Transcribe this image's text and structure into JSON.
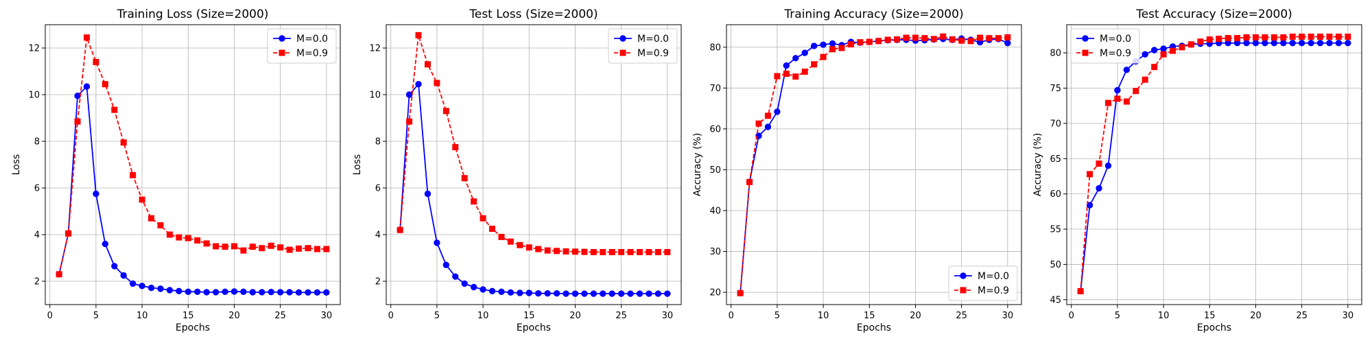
{
  "chart_data": [
    {
      "type": "line",
      "title": "Training Loss (Size=2000)",
      "xlabel": "Epochs",
      "ylabel": "Loss",
      "xlim": [
        -0.5,
        31.5
      ],
      "ylim": [
        1.0,
        13.0
      ],
      "xticks": [
        0,
        5,
        10,
        15,
        20,
        25,
        30
      ],
      "yticks": [
        2,
        4,
        6,
        8,
        10,
        12
      ],
      "grid": true,
      "legend": "top-right",
      "x": [
        1,
        2,
        3,
        4,
        5,
        6,
        7,
        8,
        9,
        10,
        11,
        12,
        13,
        14,
        15,
        16,
        17,
        18,
        19,
        20,
        21,
        22,
        23,
        24,
        25,
        26,
        27,
        28,
        29,
        30
      ],
      "series": [
        {
          "name": "M=0.0",
          "color": "#0000ff",
          "marker": "circle",
          "linestyle": "solid",
          "values": [
            2.3,
            4.05,
            9.95,
            10.35,
            5.75,
            3.6,
            2.65,
            2.25,
            1.9,
            1.8,
            1.72,
            1.68,
            1.62,
            1.58,
            1.55,
            1.55,
            1.53,
            1.53,
            1.55,
            1.56,
            1.55,
            1.53,
            1.53,
            1.54,
            1.53,
            1.53,
            1.52,
            1.52,
            1.52,
            1.52
          ]
        },
        {
          "name": "M=0.9",
          "color": "#ff0000",
          "marker": "square",
          "linestyle": "dashed",
          "values": [
            2.3,
            4.05,
            8.85,
            12.45,
            11.4,
            10.45,
            9.35,
            7.95,
            6.55,
            5.5,
            4.7,
            4.4,
            4.0,
            3.88,
            3.85,
            3.75,
            3.62,
            3.5,
            3.48,
            3.5,
            3.32,
            3.48,
            3.42,
            3.52,
            3.45,
            3.35,
            3.4,
            3.42,
            3.38,
            3.38
          ]
        }
      ]
    },
    {
      "type": "line",
      "title": "Test Loss (Size=2000)",
      "xlabel": "Epochs",
      "ylabel": "Loss",
      "xlim": [
        -0.5,
        31.5
      ],
      "ylim": [
        1.0,
        13.0
      ],
      "xticks": [
        0,
        5,
        10,
        15,
        20,
        25,
        30
      ],
      "yticks": [
        2,
        4,
        6,
        8,
        10,
        12
      ],
      "grid": true,
      "legend": "top-right",
      "x": [
        1,
        2,
        3,
        4,
        5,
        6,
        7,
        8,
        9,
        10,
        11,
        12,
        13,
        14,
        15,
        16,
        17,
        18,
        19,
        20,
        21,
        22,
        23,
        24,
        25,
        26,
        27,
        28,
        29,
        30
      ],
      "series": [
        {
          "name": "M=0.0",
          "color": "#0000ff",
          "marker": "circle",
          "linestyle": "solid",
          "values": [
            4.2,
            10.0,
            10.45,
            5.75,
            3.65,
            2.7,
            2.2,
            1.9,
            1.75,
            1.65,
            1.58,
            1.55,
            1.52,
            1.5,
            1.5,
            1.48,
            1.48,
            1.48,
            1.47,
            1.47,
            1.47,
            1.47,
            1.47,
            1.47,
            1.47,
            1.47,
            1.47,
            1.47,
            1.47,
            1.47
          ]
        },
        {
          "name": "M=0.9",
          "color": "#ff0000",
          "marker": "square",
          "linestyle": "dashed",
          "values": [
            4.2,
            8.85,
            12.55,
            11.3,
            10.5,
            9.3,
            7.75,
            6.42,
            5.42,
            4.7,
            4.25,
            3.9,
            3.7,
            3.55,
            3.45,
            3.38,
            3.32,
            3.3,
            3.28,
            3.27,
            3.26,
            3.25,
            3.25,
            3.25,
            3.25,
            3.25,
            3.25,
            3.25,
            3.25,
            3.25
          ]
        }
      ]
    },
    {
      "type": "line",
      "title": "Training Accuracy (Size=2000)",
      "xlabel": "Epochs",
      "ylabel": "Accuracy (%)",
      "xlim": [
        -0.5,
        31.5
      ],
      "ylim": [
        17.0,
        85.5
      ],
      "xticks": [
        0,
        5,
        10,
        15,
        20,
        25,
        30
      ],
      "yticks": [
        20,
        30,
        40,
        50,
        60,
        70,
        80
      ],
      "grid": true,
      "legend": "bottom-right",
      "x": [
        1,
        2,
        3,
        4,
        5,
        6,
        7,
        8,
        9,
        10,
        11,
        12,
        13,
        14,
        15,
        16,
        17,
        18,
        19,
        20,
        21,
        22,
        23,
        24,
        25,
        26,
        27,
        28,
        29,
        30
      ],
      "series": [
        {
          "name": "M=0.0",
          "color": "#0000ff",
          "marker": "circle",
          "linestyle": "solid",
          "values": [
            19.8,
            47.0,
            58.3,
            60.5,
            64.2,
            75.5,
            77.3,
            78.6,
            80.3,
            80.6,
            80.9,
            80.5,
            81.3,
            81.1,
            81.3,
            81.5,
            81.7,
            81.8,
            81.8,
            81.6,
            81.7,
            81.9,
            82.0,
            81.8,
            82.1,
            81.8,
            81.2,
            81.8,
            82.0,
            81.0
          ]
        },
        {
          "name": "M=0.9",
          "color": "#ff0000",
          "marker": "square",
          "linestyle": "dashed",
          "values": [
            19.8,
            47.0,
            61.3,
            63.2,
            72.9,
            73.5,
            72.8,
            74.0,
            75.8,
            77.6,
            79.5,
            79.8,
            80.7,
            81.2,
            81.3,
            81.5,
            81.8,
            81.9,
            82.3,
            82.3,
            82.2,
            82.0,
            82.6,
            81.9,
            81.6,
            81.5,
            82.3,
            82.2,
            82.2,
            82.4
          ]
        }
      ]
    },
    {
      "type": "line",
      "title": "Test Accuracy (Size=2000)",
      "xlabel": "Epochs",
      "ylabel": "Accuracy (%)",
      "xlim": [
        -0.5,
        31.5
      ],
      "ylim": [
        44.3,
        84.0
      ],
      "xticks": [
        0,
        5,
        10,
        15,
        20,
        25,
        30
      ],
      "yticks": [
        45,
        50,
        55,
        60,
        65,
        70,
        75,
        80
      ],
      "grid": true,
      "legend": "top-left",
      "x": [
        1,
        2,
        3,
        4,
        5,
        6,
        7,
        8,
        9,
        10,
        11,
        12,
        13,
        14,
        15,
        16,
        17,
        18,
        19,
        20,
        21,
        22,
        23,
        24,
        25,
        26,
        27,
        28,
        29,
        30
      ],
      "series": [
        {
          "name": "M=0.0",
          "color": "#0000ff",
          "marker": "circle",
          "linestyle": "solid",
          "values": [
            46.2,
            58.4,
            60.8,
            64.0,
            74.7,
            77.6,
            78.8,
            79.8,
            80.4,
            80.6,
            80.9,
            81.0,
            81.2,
            81.3,
            81.3,
            81.4,
            81.4,
            81.4,
            81.4,
            81.4,
            81.4,
            81.4,
            81.4,
            81.4,
            81.4,
            81.4,
            81.4,
            81.4,
            81.4,
            81.4
          ]
        },
        {
          "name": "M=0.9",
          "color": "#ff0000",
          "marker": "square",
          "linestyle": "dashed",
          "values": [
            46.2,
            62.8,
            64.3,
            72.9,
            73.5,
            73.1,
            74.6,
            76.2,
            78.0,
            79.8,
            80.3,
            80.8,
            81.2,
            81.6,
            81.9,
            82.0,
            82.1,
            82.1,
            82.2,
            82.2,
            82.2,
            82.2,
            82.2,
            82.3,
            82.3,
            82.3,
            82.3,
            82.3,
            82.3,
            82.3
          ]
        }
      ]
    }
  ]
}
